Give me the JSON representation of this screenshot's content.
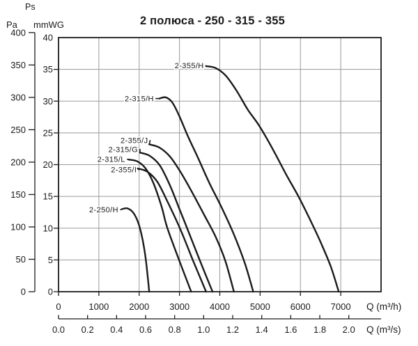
{
  "colors": {
    "curve": "#1a1a1a",
    "grid": "#999999",
    "axis": "#1a1a1a",
    "text": "#1a1a1a",
    "background": "#ffffff"
  },
  "chart_data": {
    "type": "line",
    "title": "2 полюса - 250 - 315 - 355",
    "grid": true,
    "legend": "labels-on-curves",
    "x_axis": {
      "unit_h": "Q (m³/h)",
      "unit_s": "Q (m³/s)",
      "range_m3h": [
        0,
        8000
      ],
      "ticks_m3h": [
        0,
        1000,
        2000,
        3000,
        4000,
        5000,
        6000,
        7000
      ],
      "ticks_m3s": [
        "0.0",
        "0.2",
        "0.4",
        "0.6",
        "0.8",
        "1.0",
        "1.2",
        "1.4",
        "1.6",
        "1.8",
        "2.0"
      ]
    },
    "y_axis": {
      "axis_name": "Ps",
      "unit_pa": "Pa",
      "unit_mmwg": "mmWG",
      "range_mmwg": [
        0,
        40
      ],
      "range_pa": [
        0,
        400
      ],
      "ticks_pa": [
        400,
        350,
        300,
        250,
        200,
        150,
        100,
        50,
        0
      ],
      "ticks_mmwg": [
        40,
        35,
        30,
        25,
        20,
        15,
        10,
        5,
        0
      ]
    },
    "series": [
      {
        "name": "2-250/H",
        "label_pos": [
          1520,
          12.9
        ],
        "points_m3h_mmwg": [
          [
            1570,
            13.0
          ],
          [
            1720,
            13.1
          ],
          [
            1880,
            12.2
          ],
          [
            2020,
            10
          ],
          [
            2150,
            5.8
          ],
          [
            2250,
            0
          ]
        ]
      },
      {
        "name": "2-315/L",
        "label_pos": [
          1690,
          20.85
        ],
        "points_m3h_mmwg": [
          [
            1740,
            20.8
          ],
          [
            1960,
            20.5
          ],
          [
            2160,
            19.4
          ],
          [
            2360,
            17.0
          ],
          [
            2560,
            13.3
          ],
          [
            2700,
            10
          ],
          [
            2990,
            5
          ],
          [
            3290,
            0
          ]
        ]
      },
      {
        "name": "2-355/I",
        "label_pos": [
          1975,
          19.2
        ],
        "points_m3h_mmwg": [
          [
            1960,
            19.4
          ],
          [
            2200,
            18.9
          ],
          [
            2450,
            17.3
          ],
          [
            2700,
            14.2
          ],
          [
            3010,
            10
          ],
          [
            3330,
            5
          ],
          [
            3660,
            0
          ]
        ]
      },
      {
        "name": "2-315/G",
        "label_pos": [
          2005,
          22.4
        ],
        "points_m3h_mmwg": [
          [
            2020,
            21.9
          ],
          [
            2260,
            21.4
          ],
          [
            2510,
            19.9
          ],
          [
            2760,
            16.8
          ],
          [
            3000,
            13
          ],
          [
            3190,
            10
          ],
          [
            3500,
            5
          ],
          [
            3820,
            0
          ]
        ]
      },
      {
        "name": "2-355/J",
        "label_pos": [
          2255,
          23.8
        ],
        "points_m3h_mmwg": [
          [
            2250,
            23.2
          ],
          [
            2500,
            22.7
          ],
          [
            2760,
            21.3
          ],
          [
            3020,
            18.9
          ],
          [
            3300,
            15.8
          ],
          [
            3620,
            12
          ],
          [
            3900,
            8.6
          ],
          [
            4140,
            4.8
          ],
          [
            4350,
            0
          ]
        ]
      },
      {
        "name": "2-315/H",
        "label_pos": [
          2400,
          30.4
        ],
        "points_m3h_mmwg": [
          [
            2500,
            30.4
          ],
          [
            2660,
            30.6
          ],
          [
            2820,
            29.8
          ],
          [
            3000,
            27.6
          ],
          [
            3200,
            24.6
          ],
          [
            3450,
            21.2
          ],
          [
            3750,
            17
          ],
          [
            4050,
            13.2
          ],
          [
            4350,
            9
          ],
          [
            4620,
            4.5
          ],
          [
            4830,
            0
          ]
        ]
      },
      {
        "name": "2-355/H",
        "label_pos": [
          3640,
          35.6
        ],
        "points_m3h_mmwg": [
          [
            3660,
            35.5
          ],
          [
            3900,
            35.2
          ],
          [
            4150,
            34
          ],
          [
            4420,
            31.6
          ],
          [
            4700,
            28.6
          ],
          [
            4970,
            26.2
          ],
          [
            5300,
            22.6
          ],
          [
            5650,
            18.4
          ],
          [
            5950,
            15
          ],
          [
            6250,
            11.2
          ],
          [
            6500,
            7.8
          ],
          [
            6750,
            4
          ],
          [
            6950,
            0
          ]
        ]
      }
    ]
  }
}
